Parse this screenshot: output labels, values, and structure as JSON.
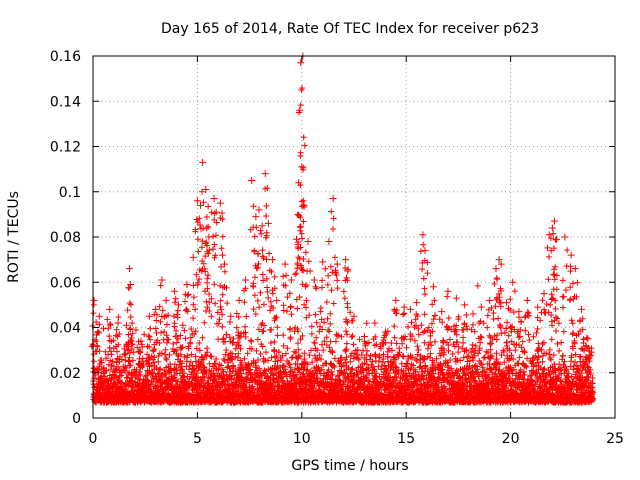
{
  "chart_data": {
    "type": "scatter",
    "title": "Day 165 of 2014, Rate Of TEC Index for receiver p623",
    "xlabel": "GPS time / hours",
    "ylabel": "ROTI / TECUs",
    "xlim": [
      0,
      25
    ],
    "ylim": [
      0,
      0.16
    ],
    "x_ticks": [
      0,
      5,
      10,
      15,
      20,
      25
    ],
    "x_tick_labels": [
      "0",
      "5",
      "10",
      "15",
      "20",
      "25"
    ],
    "y_ticks": [
      0,
      0.02,
      0.04,
      0.06,
      0.08,
      0.1,
      0.12,
      0.14,
      0.16
    ],
    "y_tick_labels": [
      "0",
      "0.02",
      "0.04",
      "0.06",
      "0.08",
      "0.1",
      "0.12",
      "0.14",
      "0.16"
    ],
    "grid": true,
    "legend": "none",
    "marker": "plus",
    "color": "#ff0000",
    "data_range_hours": [
      0,
      23.95
    ],
    "baseline_typical": 0.015,
    "baseline_min": 0.005,
    "series": [
      {
        "name": "ROTI",
        "points": [
          [
            0.05,
            0.052
          ],
          [
            0.3,
            0.045
          ],
          [
            0.8,
            0.048
          ],
          [
            1.2,
            0.042
          ],
          [
            1.6,
            0.041
          ],
          [
            1.75,
            0.066
          ],
          [
            1.8,
            0.059
          ],
          [
            2.3,
            0.034
          ],
          [
            2.7,
            0.045
          ],
          [
            3.0,
            0.048
          ],
          [
            3.3,
            0.061
          ],
          [
            3.5,
            0.052
          ],
          [
            3.9,
            0.056
          ],
          [
            4.1,
            0.05
          ],
          [
            4.3,
            0.041
          ],
          [
            4.5,
            0.059
          ],
          [
            4.8,
            0.071
          ],
          [
            5.0,
            0.096
          ],
          [
            5.15,
            0.094
          ],
          [
            5.25,
            0.113
          ],
          [
            5.4,
            0.101
          ],
          [
            5.45,
            0.084
          ],
          [
            5.55,
            0.08
          ],
          [
            5.8,
            0.097
          ],
          [
            5.9,
            0.091
          ],
          [
            6.1,
            0.095
          ],
          [
            6.2,
            0.072
          ],
          [
            6.3,
            0.068
          ],
          [
            6.6,
            0.045
          ],
          [
            7.0,
            0.052
          ],
          [
            7.3,
            0.061
          ],
          [
            7.6,
            0.105
          ],
          [
            7.8,
            0.089
          ],
          [
            7.95,
            0.092
          ],
          [
            8.1,
            0.085
          ],
          [
            8.25,
            0.108
          ],
          [
            8.4,
            0.086
          ],
          [
            8.6,
            0.07
          ],
          [
            8.8,
            0.052
          ],
          [
            9.2,
            0.068
          ],
          [
            9.5,
            0.061
          ],
          [
            9.75,
            0.079
          ],
          [
            9.85,
            0.104
          ],
          [
            9.9,
            0.136
          ],
          [
            9.95,
            0.157
          ],
          [
            10.05,
            0.16
          ],
          [
            10.0,
            0.111
          ],
          [
            10.1,
            0.094
          ],
          [
            10.3,
            0.078
          ],
          [
            10.6,
            0.061
          ],
          [
            11.0,
            0.069
          ],
          [
            11.3,
            0.078
          ],
          [
            11.5,
            0.097
          ],
          [
            11.7,
            0.068
          ],
          [
            12.1,
            0.07
          ],
          [
            12.2,
            0.065
          ],
          [
            12.5,
            0.045
          ],
          [
            13.0,
            0.036
          ],
          [
            13.5,
            0.042
          ],
          [
            14.0,
            0.038
          ],
          [
            14.5,
            0.052
          ],
          [
            14.9,
            0.049
          ],
          [
            15.2,
            0.048
          ],
          [
            15.5,
            0.051
          ],
          [
            15.8,
            0.081
          ],
          [
            15.9,
            0.074
          ],
          [
            16.3,
            0.058
          ],
          [
            16.7,
            0.047
          ],
          [
            17.0,
            0.056
          ],
          [
            17.4,
            0.053
          ],
          [
            17.8,
            0.05
          ],
          [
            18.2,
            0.046
          ],
          [
            18.6,
            0.049
          ],
          [
            19.0,
            0.052
          ],
          [
            19.3,
            0.066
          ],
          [
            19.45,
            0.07
          ],
          [
            19.55,
            0.068
          ],
          [
            19.8,
            0.051
          ],
          [
            20.1,
            0.06
          ],
          [
            20.4,
            0.047
          ],
          [
            20.8,
            0.052
          ],
          [
            21.3,
            0.049
          ],
          [
            21.6,
            0.055
          ],
          [
            21.85,
            0.081
          ],
          [
            22.0,
            0.084
          ],
          [
            22.1,
            0.087
          ],
          [
            22.2,
            0.079
          ],
          [
            22.6,
            0.08
          ],
          [
            22.9,
            0.072
          ],
          [
            23.1,
            0.066
          ],
          [
            23.4,
            0.048
          ],
          [
            23.7,
            0.035
          ]
        ]
      }
    ]
  }
}
